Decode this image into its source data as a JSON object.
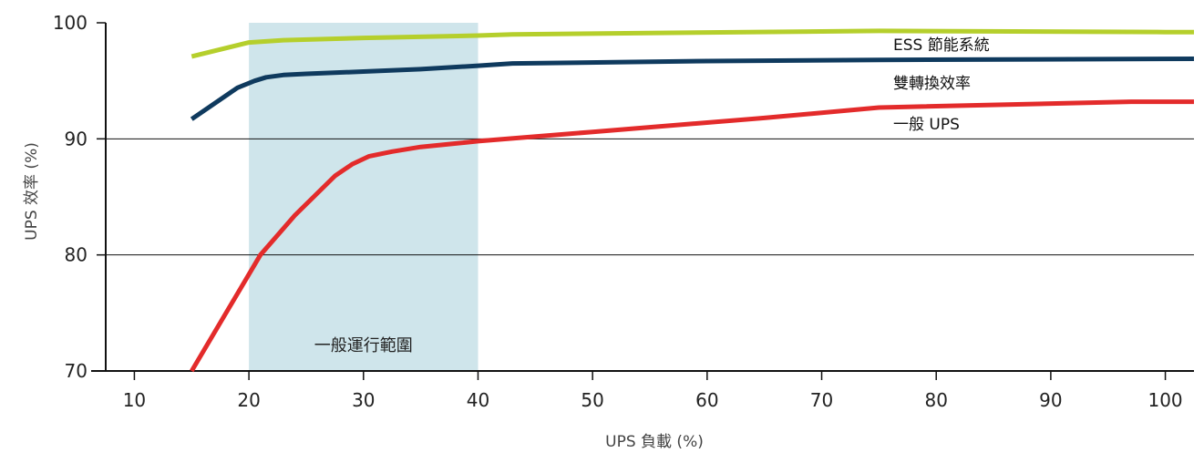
{
  "chart_data": {
    "type": "line",
    "xlabel": "UPS 負載 (%)",
    "ylabel": "UPS 效率 (%)",
    "xlim": [
      7.5,
      102.5
    ],
    "ylim": [
      70,
      100
    ],
    "xticks": [
      10,
      20,
      30,
      40,
      50,
      60,
      70,
      80,
      90,
      100
    ],
    "yticks": [
      70,
      80,
      90,
      100
    ],
    "grid": "horizontal lines at 80 and 90",
    "shaded_band": {
      "x": [
        20,
        40
      ],
      "label": "一般運行範圍",
      "color": "#cfe5eb"
    },
    "series": [
      {
        "name": "ESS 節能系統",
        "color": "#b5cf2c",
        "x": [
          15,
          20,
          23,
          30,
          40,
          43,
          75,
          100,
          102.5
        ],
        "y": [
          97.1,
          98.3,
          98.5,
          98.7,
          98.9,
          99.0,
          99.3,
          99.2,
          99.2
        ]
      },
      {
        "name": "雙轉換效率",
        "color": "#0f3a5e",
        "x": [
          15,
          19,
          20.5,
          21.5,
          23,
          25,
          30,
          35,
          40,
          43,
          60,
          75,
          102.5
        ],
        "y": [
          91.7,
          94.4,
          95.0,
          95.3,
          95.5,
          95.6,
          95.8,
          96.0,
          96.3,
          96.5,
          96.7,
          96.8,
          96.9
        ]
      },
      {
        "name": "一般 UPS",
        "color": "#e32b2b",
        "x": [
          15,
          21,
          24,
          27.5,
          29,
          30.5,
          32.5,
          35,
          40,
          50,
          65,
          75,
          97,
          102.5
        ],
        "y": [
          70.0,
          80.0,
          83.4,
          86.8,
          87.8,
          88.5,
          88.9,
          89.3,
          89.8,
          90.6,
          91.8,
          92.7,
          93.2,
          93.2
        ]
      }
    ]
  }
}
